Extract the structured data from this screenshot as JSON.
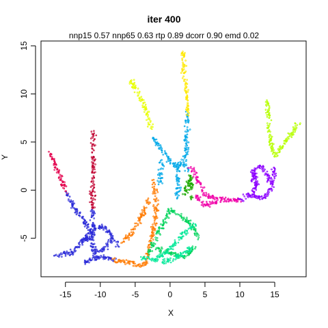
{
  "chart_data": {
    "type": "scatter",
    "title": "iter 400",
    "subtitle": "nnp15 0.57 nnp65 0.63 rtp 0.89 dcorr 0.90 emd 0.02",
    "xlabel": "X",
    "ylabel": "Y",
    "xlim": [
      -18.5,
      19.5
    ],
    "ylim": [
      -9,
      15.5
    ],
    "xticks": [
      -15,
      -10,
      -5,
      0,
      5,
      10,
      15
    ],
    "yticks": [
      -5,
      0,
      5,
      10,
      15
    ],
    "grid": false,
    "legend": "none",
    "series": [
      {
        "color": "#e3004c",
        "paths": [
          [
            [
              -17.2,
              4.0
            ],
            [
              -16.5,
              2.5
            ],
            [
              -15.5,
              1.0
            ],
            [
              -14.8,
              -0.3
            ]
          ]
        ]
      },
      {
        "color": "#c00030",
        "paths": [
          [
            [
              -11.0,
              6.0
            ],
            [
              -11.0,
              2.0
            ],
            [
              -11.1,
              -2.0
            ]
          ]
        ]
      },
      {
        "color": "#2a2ad8",
        "paths": [
          [
            [
              -14.8,
              -0.3
            ],
            [
              -13.8,
              -1.8
            ],
            [
              -12.5,
              -3.0
            ],
            [
              -11.5,
              -4.2
            ],
            [
              -11.3,
              -4.8
            ]
          ],
          [
            [
              -11.1,
              -2.0
            ],
            [
              -11.0,
              -4.0
            ],
            [
              -11.2,
              -5.0
            ]
          ],
          [
            [
              -16.5,
              -6.7
            ],
            [
              -14.0,
              -6.5
            ],
            [
              -12.5,
              -5.2
            ],
            [
              -11.2,
              -5.0
            ],
            [
              -11.0,
              -6.3
            ],
            [
              -10.5,
              -7.0
            ]
          ],
          [
            [
              -12.5,
              -7.5
            ],
            [
              -10.5,
              -7.0
            ],
            [
              -9.0,
              -7.0
            ],
            [
              -8.0,
              -7.3
            ]
          ],
          [
            [
              -12.5,
              -5.2
            ],
            [
              -11.0,
              -4.0
            ],
            [
              -9.5,
              -3.8
            ],
            [
              -8.5,
              -4.5
            ],
            [
              -7.5,
              -5.8
            ]
          ],
          [
            [
              -11.0,
              -6.3
            ],
            [
              -9.5,
              -6.2
            ],
            [
              -8.5,
              -5.2
            ]
          ]
        ]
      },
      {
        "color": "#ff7a00",
        "paths": [
          [
            [
              -8.0,
              -7.3
            ],
            [
              -6.0,
              -7.5
            ],
            [
              -4.5,
              -7.8
            ],
            [
              -3.5,
              -7.6
            ],
            [
              -3.0,
              -6.0
            ],
            [
              -2.5,
              -4.5
            ],
            [
              -2.0,
              -2.0
            ],
            [
              -2.3,
              1.0
            ]
          ],
          [
            [
              -7.0,
              -5.5
            ],
            [
              -5.5,
              -4.5
            ],
            [
              -4.0,
              -2.5
            ],
            [
              -3.0,
              -1.0
            ]
          ]
        ]
      },
      {
        "color": "#1ea800",
        "paths": [
          [
            [
              2.0,
              -0.5
            ],
            [
              2.5,
              0.5
            ],
            [
              3.0,
              1.5
            ],
            [
              3.0,
              -1.0
            ]
          ]
        ]
      },
      {
        "color": "#00d35a",
        "paths": [
          [
            [
              -3.0,
              -6.5
            ],
            [
              -2.0,
              -5.0
            ],
            [
              -1.0,
              -3.5
            ],
            [
              0.0,
              -2.0
            ],
            [
              1.0,
              -2.5
            ],
            [
              3.0,
              -3.5
            ],
            [
              4.0,
              -5.0
            ]
          ],
          [
            [
              -2.0,
              -6.0
            ],
            [
              0.0,
              -6.5
            ],
            [
              2.0,
              -7.0
            ],
            [
              3.5,
              -6.0
            ]
          ]
        ]
      },
      {
        "color": "#00e898",
        "paths": [
          [
            [
              -4.0,
              -7.0
            ],
            [
              -2.0,
              -7.2
            ],
            [
              0.0,
              -6.0
            ],
            [
              2.0,
              -4.5
            ],
            [
              3.5,
              -3.5
            ]
          ],
          [
            [
              -1.0,
              -7.5
            ],
            [
              1.5,
              -6.8
            ],
            [
              3.0,
              -6.0
            ]
          ]
        ]
      },
      {
        "color": "#00a8e8",
        "paths": [
          [
            [
              -2.5,
              5.5
            ],
            [
              -1.0,
              4.0
            ],
            [
              0.0,
              3.0
            ],
            [
              1.0,
              2.5
            ],
            [
              2.0,
              3.0
            ],
            [
              2.5,
              2.0
            ]
          ],
          [
            [
              -1.2,
              3.0
            ],
            [
              -1.5,
              1.5
            ],
            [
              -1.3,
              0.5
            ]
          ],
          [
            [
              1.0,
              2.5
            ],
            [
              1.2,
              0.5
            ],
            [
              1.0,
              -1.0
            ]
          ],
          [
            [
              2.5,
              8.0
            ],
            [
              2.3,
              5.0
            ],
            [
              2.2,
              3.0
            ]
          ]
        ]
      },
      {
        "color": "#f000a8",
        "paths": [
          [
            [
              3.0,
              2.5
            ],
            [
              4.0,
              1.0
            ],
            [
              5.0,
              -0.5
            ],
            [
              6.5,
              -0.8
            ],
            [
              8.0,
              -1.0
            ],
            [
              10.0,
              -1.0
            ]
          ],
          [
            [
              3.5,
              -0.5
            ],
            [
              5.0,
              -1.5
            ],
            [
              7.0,
              -1.2
            ]
          ]
        ]
      },
      {
        "color": "#8c00ff",
        "paths": [
          [
            [
              10.0,
              -1.0
            ],
            [
              11.5,
              -0.5
            ],
            [
              12.5,
              0.5
            ],
            [
              12.0,
              2.0
            ],
            [
              13.0,
              2.5
            ],
            [
              14.0,
              1.5
            ],
            [
              14.5,
              0.5
            ],
            [
              15.0,
              2.5
            ]
          ],
          [
            [
              11.5,
              -0.5
            ],
            [
              13.0,
              -0.8
            ],
            [
              14.0,
              -0.5
            ],
            [
              14.5,
              0.5
            ]
          ],
          [
            [
              12.0,
              2.0
            ],
            [
              11.8,
              1.0
            ],
            [
              12.5,
              0.5
            ]
          ]
        ]
      },
      {
        "color": "#b6ff00",
        "paths": [
          [
            [
              14.0,
              9.3
            ],
            [
              14.2,
              6.5
            ],
            [
              14.5,
              4.5
            ],
            [
              15.0,
              3.5
            ],
            [
              16.5,
              5.0
            ],
            [
              18.5,
              7.0
            ]
          ]
        ]
      },
      {
        "color": "#e8ff00",
        "paths": [
          [
            [
              -5.8,
              11.6
            ],
            [
              -4.5,
              10.0
            ],
            [
              -3.5,
              8.5
            ],
            [
              -3.0,
              7.0
            ],
            [
              -2.5,
              6.5
            ]
          ]
        ]
      },
      {
        "color": "#ffe800",
        "paths": [
          [
            [
              1.8,
              14.5
            ],
            [
              2.2,
              11.0
            ],
            [
              2.5,
              9.5
            ],
            [
              2.5,
              8.0
            ]
          ]
        ]
      }
    ]
  }
}
